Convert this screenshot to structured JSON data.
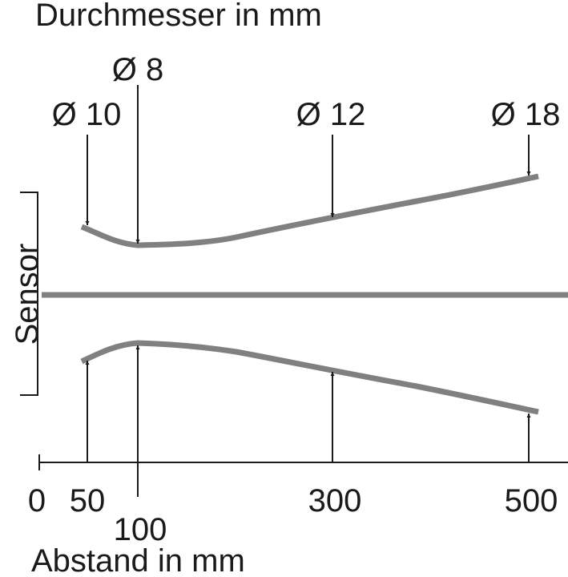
{
  "title": "Durchmesser in mm",
  "x_axis_label": "Abstand in mm",
  "sensor_label": "Sensor",
  "x_ticks": [
    "0",
    "50",
    "100",
    "300",
    "500"
  ],
  "diameter_labels": [
    "Ø 10",
    "Ø 8",
    "Ø 12",
    "Ø 18"
  ],
  "colors": {
    "beam": "#808080",
    "ink": "#1a1a1a",
    "background": "#ffffff"
  },
  "chart_data": {
    "type": "line",
    "title": "Durchmesser in mm",
    "xlabel": "Abstand in mm",
    "ylabel": "",
    "x_ticks": [
      0,
      50,
      100,
      300,
      500
    ],
    "markers": [
      {
        "distance": 50,
        "diameter": 10,
        "label": "Ø 10"
      },
      {
        "distance": 100,
        "diameter": 8,
        "label": "Ø 8"
      },
      {
        "distance": 300,
        "diameter": 12,
        "label": "Ø 12"
      },
      {
        "distance": 500,
        "diameter": 18,
        "label": "Ø 18"
      }
    ]
  }
}
